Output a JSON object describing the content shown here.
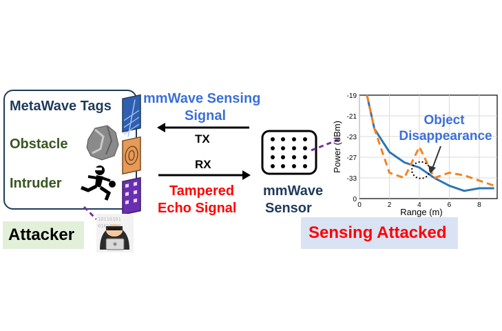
{
  "tags_panel": {
    "title": "MetaWave Tags",
    "obstacle": "Obstacle",
    "intruder": "Intruder"
  },
  "attacker": {
    "label": "Attacker"
  },
  "signal": {
    "sensing_line1": "mmWave Sensing",
    "sensing_line2": "Signal",
    "tx": "TX",
    "rx": "RX",
    "tampered_line1": "Tampered",
    "tampered_line2": "Echo Signal"
  },
  "sensor": {
    "line1": "mmWave",
    "line2": "Sensor"
  },
  "result": {
    "label": "Sensing Attacked"
  },
  "colors": {
    "navy": "#1f3a5a",
    "green": "#38561f",
    "blue": "#3b6fd9",
    "red": "#ff0000",
    "orange": "#f28322",
    "series_blue": "#2e75b6",
    "purple": "#7030a0"
  },
  "chart_data": {
    "type": "line",
    "xlabel": "Range (m)",
    "ylabel": "Power (dBm)",
    "xlim": [
      0,
      9.2
    ],
    "ylim": [
      -39,
      -19
    ],
    "xticks": [
      0,
      2,
      4,
      6,
      8
    ],
    "yticks": [
      -19,
      -21,
      -23,
      -27,
      -33,
      0
    ],
    "grid": true,
    "annotation": {
      "line1": "Object",
      "line2": "Disappearance"
    },
    "series": [
      {
        "style": "solid",
        "color": "#2e75b6",
        "x": [
          0.5,
          1,
          2,
          3,
          4,
          5,
          6,
          7,
          8,
          9
        ],
        "y": [
          -19,
          -25.5,
          -30,
          -32,
          -33,
          -35,
          -36.5,
          -37.5,
          -37,
          -37
        ]
      },
      {
        "style": "dashed",
        "color": "#f28322",
        "x": [
          0.5,
          1,
          2,
          3,
          4,
          5,
          6,
          7,
          8,
          9
        ],
        "y": [
          -19,
          -25.5,
          -34,
          -35,
          -29,
          -35,
          -34,
          -34.5,
          -35.5,
          -36.5
        ]
      }
    ]
  }
}
